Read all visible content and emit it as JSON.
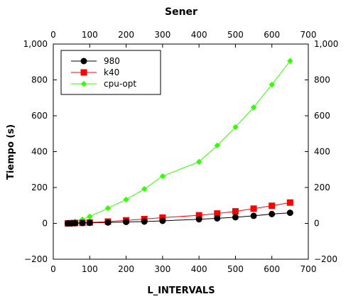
{
  "chart_data": {
    "type": "line",
    "title": "Sener",
    "xlabel": "L_INTERVALS",
    "ylabel": "Tiempo (s)",
    "xlim": [
      0,
      700
    ],
    "ylim": [
      -200,
      1000
    ],
    "x_ticks": [
      0,
      100,
      200,
      300,
      400,
      500,
      600,
      700
    ],
    "y_ticks": [
      -200,
      0,
      200,
      400,
      600,
      800,
      1000
    ],
    "x_tick_labels": [
      "0",
      "100",
      "200",
      "300",
      "400",
      "500",
      "600",
      "700"
    ],
    "y_tick_labels": [
      "−200",
      "0",
      "200",
      "400",
      "600",
      "800",
      "1,000"
    ],
    "grid": false,
    "legend_position": "top-left",
    "series": [
      {
        "name": "980",
        "color": "#000000",
        "marker": "circle",
        "x": [
          40,
          50,
          60,
          80,
          100,
          150,
          200,
          250,
          300,
          400,
          450,
          500,
          550,
          600,
          650
        ],
        "y": [
          0,
          0,
          1,
          2,
          3,
          5,
          8,
          10,
          14,
          23,
          28,
          34,
          42,
          52,
          59
        ]
      },
      {
        "name": "k40",
        "color": "#ff0000",
        "marker": "square",
        "x": [
          40,
          50,
          60,
          80,
          100,
          150,
          200,
          250,
          300,
          400,
          450,
          500,
          550,
          600,
          650
        ],
        "y": [
          0,
          1,
          2,
          3,
          5,
          10,
          17,
          24,
          32,
          45,
          55,
          67,
          82,
          98,
          116
        ]
      },
      {
        "name": "cpu-opt",
        "color": "#33ff00",
        "marker": "diamond",
        "x": [
          40,
          50,
          60,
          80,
          100,
          150,
          200,
          250,
          300,
          400,
          450,
          500,
          550,
          600,
          650
        ],
        "y": [
          3,
          5,
          10,
          22,
          38,
          85,
          133,
          192,
          263,
          343,
          434,
          537,
          647,
          774,
          906
        ]
      }
    ]
  }
}
